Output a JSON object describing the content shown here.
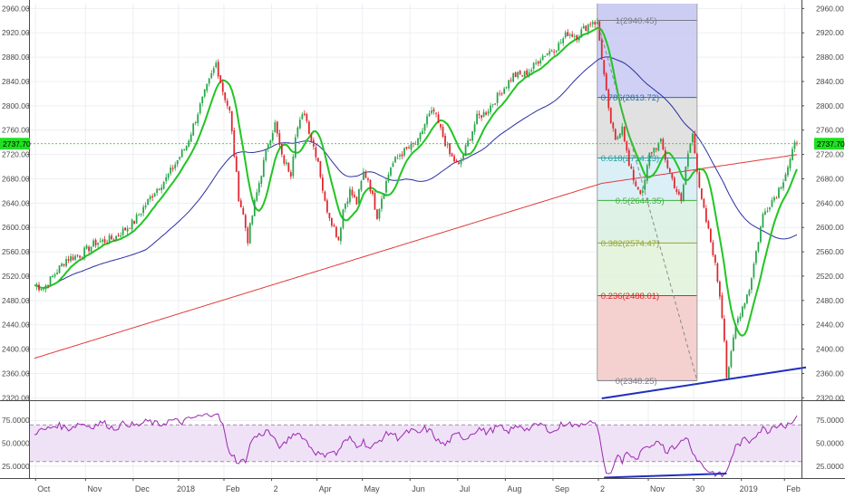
{
  "chart_data": [
    {
      "type": "candlestick",
      "panel": "price",
      "ylim": [
        2316,
        2968
      ],
      "y_ticks": [
        2320,
        2360,
        2400,
        2440,
        2480,
        2520,
        2560,
        2600,
        2640,
        2680,
        2720,
        2760,
        2800,
        2840,
        2880,
        2920,
        2960
      ],
      "y_tick_labels": [
        "2320.00",
        "2360.00",
        "2400.00",
        "2440.00",
        "2480.00",
        "2520.00",
        "2560.00",
        "2600.00",
        "2640.00",
        "2680.00",
        "2720.00",
        "2760.00",
        "2800.00",
        "2840.00",
        "2880.00",
        "2920.00",
        "2960.00"
      ],
      "x_labels": [
        "Oct",
        "Nov",
        "Dec",
        "2018",
        "Feb",
        "2",
        "Apr",
        "May",
        "Jun",
        "Jul",
        "Aug",
        "Sep",
        "2",
        "Nov",
        "30",
        "2019",
        "Feb"
      ],
      "x_label_positions": [
        0.5,
        22.5,
        43.5,
        63.5,
        83.5,
        104.5,
        124.5,
        144.5,
        165.5,
        186.5,
        207.5,
        228.5,
        248.5,
        270.5,
        290.5,
        311.5,
        330.5
      ],
      "last_price": 2737.7,
      "last_price_label": "2737.70",
      "fibonacci": {
        "start_day": 248,
        "end_day": 292,
        "levels": [
          {
            "ratio": "1",
            "value": 2940.45,
            "label": "1(2940.45)",
            "color": "#787b86",
            "fill": "#c7c8f2"
          },
          {
            "ratio": "0.786",
            "value": 2813.72,
            "label": "0.786(2813.72)",
            "color": "#2a6ca0",
            "fill": "#dcdcdc"
          },
          {
            "ratio": "0.618",
            "value": 2714.23,
            "label": "0.618(2714.23)",
            "color": "#24a0a0",
            "fill": "#d5ecf6"
          },
          {
            "ratio": "0.5",
            "value": 2644.35,
            "label": "0.5(2644.35)",
            "color": "#3cb03c",
            "fill": "#d8f0e2"
          },
          {
            "ratio": "0.382",
            "value": 2574.47,
            "label": "0.382(2574.47)",
            "color": "#9aa52a",
            "fill": "#e0f2d8"
          },
          {
            "ratio": "0.236",
            "value": 2488.01,
            "label": "0.236(2488.01)",
            "color": "#d62a2a",
            "fill": "#f3f6d4"
          },
          {
            "ratio": "0",
            "value": 2348.25,
            "label": "0(2348.25)",
            "color": "#787b86",
            "fill": "#f4cccc"
          }
        ]
      },
      "trendline_price": {
        "points": [
          [
            250,
            2319
          ],
          [
            340,
            2370
          ]
        ],
        "color": "#1f2fbf"
      },
      "trendline_fib": {
        "points": [
          [
            248,
            2940.45
          ],
          [
            292,
            2348.25
          ]
        ],
        "style": "dashed",
        "color": "#8a8a8a"
      },
      "series": [
        {
          "kind": "ohlc",
          "bull_color": "#26a649",
          "bear_color": "#e0262e"
        },
        {
          "kind": "moving_average",
          "color": "#22c522"
        },
        {
          "kind": "moving_average",
          "color": "#2a2fa0"
        },
        {
          "kind": "moving_average",
          "color": "#e03a3a"
        }
      ],
      "price_path": [
        [
          0,
          2505
        ],
        [
          4,
          2500
        ],
        [
          14,
          2548
        ],
        [
          20,
          2555
        ],
        [
          27,
          2575
        ],
        [
          35,
          2582
        ],
        [
          44,
          2610
        ],
        [
          53,
          2660
        ],
        [
          58,
          2680
        ],
        [
          67,
          2735
        ],
        [
          73,
          2800
        ],
        [
          80,
          2870
        ],
        [
          83,
          2825
        ],
        [
          86,
          2790
        ],
        [
          88,
          2720
        ],
        [
          90,
          2650
        ],
        [
          92,
          2620
        ],
        [
          94,
          2580
        ],
        [
          97,
          2640
        ],
        [
          100,
          2690
        ],
        [
          103,
          2740
        ],
        [
          106,
          2770
        ],
        [
          109,
          2715
        ],
        [
          113,
          2690
        ],
        [
          115,
          2755
        ],
        [
          119,
          2790
        ],
        [
          122,
          2745
        ],
        [
          125,
          2710
        ],
        [
          128,
          2640
        ],
        [
          131,
          2610
        ],
        [
          134,
          2580
        ],
        [
          136,
          2630
        ],
        [
          139,
          2660
        ],
        [
          142,
          2640
        ],
        [
          145,
          2690
        ],
        [
          147,
          2680
        ],
        [
          149,
          2650
        ],
        [
          151,
          2620
        ],
        [
          153,
          2650
        ],
        [
          157,
          2700
        ],
        [
          161,
          2720
        ],
        [
          165,
          2730
        ],
        [
          169,
          2740
        ],
        [
          173,
          2780
        ],
        [
          176,
          2790
        ],
        [
          179,
          2760
        ],
        [
          183,
          2720
        ],
        [
          187,
          2700
        ],
        [
          191,
          2740
        ],
        [
          195,
          2780
        ],
        [
          199,
          2790
        ],
        [
          203,
          2810
        ],
        [
          207,
          2830
        ],
        [
          211,
          2850
        ],
        [
          215,
          2850
        ],
        [
          219,
          2860
        ],
        [
          223,
          2880
        ],
        [
          227,
          2890
        ],
        [
          231,
          2900
        ],
        [
          235,
          2920
        ],
        [
          239,
          2915
        ],
        [
          243,
          2930
        ],
        [
          246,
          2940
        ],
        [
          248,
          2935
        ],
        [
          250,
          2880
        ],
        [
          253,
          2790
        ],
        [
          256,
          2740
        ],
        [
          259,
          2770
        ],
        [
          262,
          2700
        ],
        [
          265,
          2670
        ],
        [
          268,
          2655
        ],
        [
          271,
          2720
        ],
        [
          273,
          2730
        ],
        [
          276,
          2740
        ],
        [
          279,
          2700
        ],
        [
          282,
          2670
        ],
        [
          285,
          2640
        ],
        [
          287,
          2700
        ],
        [
          290,
          2760
        ],
        [
          293,
          2660
        ],
        [
          296,
          2610
        ],
        [
          299,
          2560
        ],
        [
          302,
          2490
        ],
        [
          304,
          2420
        ],
        [
          305,
          2355
        ],
        [
          307,
          2390
        ],
        [
          309,
          2440
        ],
        [
          312,
          2470
        ],
        [
          315,
          2500
        ],
        [
          318,
          2560
        ],
        [
          321,
          2620
        ],
        [
          324,
          2640
        ],
        [
          327,
          2655
        ],
        [
          330,
          2680
        ],
        [
          333,
          2710
        ],
        [
          335,
          2735
        ],
        [
          336,
          2738
        ]
      ]
    },
    {
      "type": "line",
      "panel": "rsi",
      "ylim": [
        12,
        95
      ],
      "y_ticks": [
        25,
        50,
        75
      ],
      "y_tick_labels": [
        "25.0000",
        "50.0000",
        "75.0000"
      ],
      "band": [
        30,
        70
      ],
      "band_fill": "#efe2f7",
      "band_line_color": "#a98aa9",
      "line_color": "#9c27b0",
      "trendline": {
        "points": [
          [
            251,
            12.5
          ],
          [
            305,
            17
          ]
        ],
        "color": "#1f2fbf"
      },
      "rsi_path": [
        [
          0,
          62
        ],
        [
          5,
          65
        ],
        [
          10,
          70
        ],
        [
          15,
          66
        ],
        [
          20,
          72
        ],
        [
          25,
          68
        ],
        [
          30,
          73
        ],
        [
          35,
          66
        ],
        [
          40,
          72
        ],
        [
          45,
          69
        ],
        [
          50,
          74
        ],
        [
          55,
          70
        ],
        [
          60,
          75
        ],
        [
          65,
          73
        ],
        [
          70,
          78
        ],
        [
          75,
          80
        ],
        [
          80,
          84
        ],
        [
          83,
          70
        ],
        [
          85,
          45
        ],
        [
          88,
          35
        ],
        [
          90,
          28
        ],
        [
          93,
          32
        ],
        [
          96,
          55
        ],
        [
          100,
          60
        ],
        [
          103,
          64
        ],
        [
          106,
          52
        ],
        [
          109,
          45
        ],
        [
          112,
          55
        ],
        [
          115,
          62
        ],
        [
          118,
          58
        ],
        [
          121,
          48
        ],
        [
          124,
          40
        ],
        [
          127,
          36
        ],
        [
          130,
          42
        ],
        [
          133,
          38
        ],
        [
          136,
          50
        ],
        [
          139,
          55
        ],
        [
          142,
          48
        ],
        [
          145,
          52
        ],
        [
          148,
          44
        ],
        [
          151,
          50
        ],
        [
          154,
          58
        ],
        [
          157,
          62
        ],
        [
          160,
          56
        ],
        [
          163,
          60
        ],
        [
          166,
          64
        ],
        [
          169,
          60
        ],
        [
          172,
          66
        ],
        [
          175,
          62
        ],
        [
          178,
          52
        ],
        [
          181,
          48
        ],
        [
          184,
          56
        ],
        [
          187,
          60
        ],
        [
          190,
          55
        ],
        [
          193,
          62
        ],
        [
          196,
          66
        ],
        [
          199,
          62
        ],
        [
          202,
          65
        ],
        [
          205,
          68
        ],
        [
          208,
          62
        ],
        [
          211,
          66
        ],
        [
          214,
          70
        ],
        [
          217,
          65
        ],
        [
          220,
          68
        ],
        [
          223,
          71
        ],
        [
          226,
          66
        ],
        [
          229,
          62
        ],
        [
          232,
          70
        ],
        [
          235,
          73
        ],
        [
          238,
          68
        ],
        [
          241,
          72
        ],
        [
          244,
          74
        ],
        [
          247,
          70
        ],
        [
          249,
          60
        ],
        [
          251,
          25
        ],
        [
          253,
          16
        ],
        [
          255,
          22
        ],
        [
          257,
          38
        ],
        [
          259,
          30
        ],
        [
          261,
          42
        ],
        [
          263,
          35
        ],
        [
          265,
          30
        ],
        [
          267,
          38
        ],
        [
          269,
          45
        ],
        [
          271,
          42
        ],
        [
          273,
          50
        ],
        [
          275,
          55
        ],
        [
          277,
          46
        ],
        [
          279,
          40
        ],
        [
          281,
          50
        ],
        [
          283,
          44
        ],
        [
          285,
          52
        ],
        [
          287,
          58
        ],
        [
          289,
          48
        ],
        [
          291,
          36
        ],
        [
          293,
          30
        ],
        [
          295,
          24
        ],
        [
          297,
          20
        ],
        [
          299,
          18
        ],
        [
          301,
          16
        ],
        [
          303,
          15
        ],
        [
          305,
          18
        ],
        [
          307,
          34
        ],
        [
          309,
          46
        ],
        [
          311,
          50
        ],
        [
          313,
          54
        ],
        [
          315,
          52
        ],
        [
          317,
          58
        ],
        [
          319,
          62
        ],
        [
          321,
          66
        ],
        [
          323,
          63
        ],
        [
          325,
          68
        ],
        [
          327,
          70
        ],
        [
          329,
          72
        ],
        [
          331,
          68
        ],
        [
          333,
          74
        ],
        [
          335,
          76
        ],
        [
          336,
          77
        ]
      ]
    }
  ]
}
